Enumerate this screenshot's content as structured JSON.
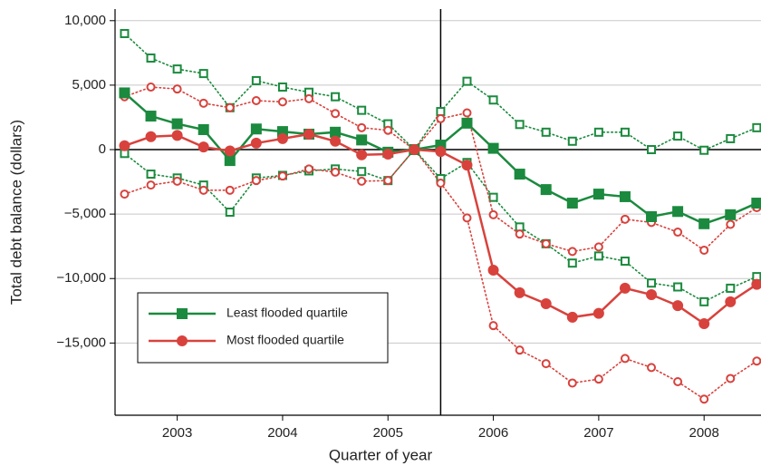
{
  "chart_data": {
    "type": "line",
    "y_label": "Total debt balance (dollars)",
    "x_label": "Quarter of year",
    "x": [
      2002.5,
      2002.75,
      2003,
      2003.25,
      2003.5,
      2003.75,
      2004,
      2004.25,
      2004.5,
      2004.75,
      2005,
      2005.25,
      2005.5,
      2005.75,
      2006,
      2006.25,
      2006.5,
      2006.75,
      2007,
      2007.25,
      2007.5,
      2007.75,
      2008,
      2008.25,
      2008.5
    ],
    "xlim": [
      2002.41,
      2008.54
    ],
    "xticks": [
      2003,
      2004,
      2005,
      2006,
      2007,
      2008
    ],
    "ylim": [
      -20600,
      10900
    ],
    "yticks": [
      {
        "value": -15000,
        "label": "−15,000"
      },
      {
        "value": -10000,
        "label": "−10,000"
      },
      {
        "value": -5000,
        "label": "−5,000"
      },
      0,
      {
        "value": 5000,
        "label": "5,000"
      },
      {
        "value": 10000,
        "label": "10,000"
      }
    ],
    "grid": true,
    "hline": 0,
    "vline": 2005.5,
    "legend": "lower left",
    "series": [
      {
        "name": "Least flooded quartile",
        "color": "#1b8a3e",
        "marker": "square",
        "values": [
          4400,
          2600,
          2000,
          1550,
          -850,
          1600,
          1400,
          1200,
          1350,
          750,
          -200,
          0,
          350,
          2050,
          100,
          -1900,
          -3100,
          -4150,
          -3450,
          -3650,
          -5200,
          -4800,
          -5750,
          -5050,
          -4150
        ],
        "upper": [
          9000,
          7100,
          6250,
          5900,
          3250,
          5350,
          4850,
          4450,
          4100,
          3050,
          2000,
          0,
          2950,
          5300,
          3850,
          1950,
          1350,
          650,
          1350,
          1350,
          0,
          1050,
          -50,
          850,
          1700
        ],
        "lower": [
          -300,
          -1900,
          -2200,
          -2750,
          -4850,
          -2200,
          -2000,
          -1650,
          -1500,
          -1700,
          -2400,
          0,
          -2250,
          -1000,
          -3700,
          -6000,
          -7300,
          -8800,
          -8250,
          -8650,
          -10350,
          -10650,
          -11800,
          -10750,
          -9850
        ]
      },
      {
        "name": "Most flooded quartile",
        "color": "#d8423d",
        "marker": "circle",
        "values": [
          300,
          1000,
          1100,
          200,
          -100,
          500,
          850,
          1200,
          650,
          -400,
          -350,
          0,
          -150,
          -1200,
          -9350,
          -11100,
          -11950,
          -13000,
          -12700,
          -10750,
          -11250,
          -12100,
          -13500,
          -11800,
          -10450
        ],
        "upper": [
          4100,
          4850,
          4700,
          3600,
          3250,
          3800,
          3700,
          3950,
          2800,
          1700,
          1500,
          0,
          2400,
          2850,
          -5050,
          -6550,
          -7300,
          -7900,
          -7550,
          -5400,
          -5650,
          -6400,
          -7800,
          -5800,
          -4500
        ],
        "lower": [
          -3450,
          -2750,
          -2450,
          -3150,
          -3150,
          -2400,
          -2050,
          -1500,
          -1750,
          -2450,
          -2400,
          0,
          -2600,
          -5300,
          -13650,
          -15550,
          -16600,
          -18100,
          -17800,
          -16200,
          -16900,
          -18000,
          -19350,
          -17750,
          -16400
        ]
      }
    ]
  }
}
